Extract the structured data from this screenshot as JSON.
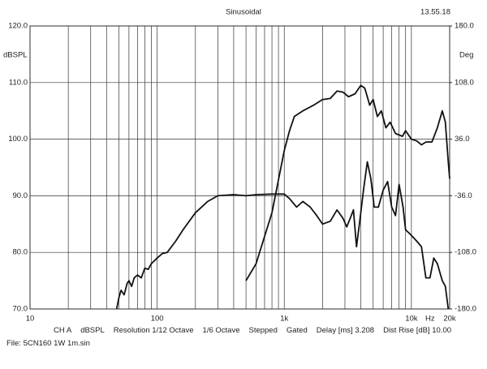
{
  "chart_data": {
    "type": "line",
    "title": "Sinusoidal",
    "timestamp": "13.55.18",
    "ylabel": "dBSPL",
    "y2label": "Deg",
    "xlabel": "Hz",
    "log_x": true,
    "grid": true,
    "minor_grid": true,
    "xlim": [
      10,
      20000
    ],
    "xticks": [
      10,
      100,
      {
        "value": 1000,
        "label": "1k"
      },
      {
        "value": 10000,
        "label": "10k"
      },
      {
        "value": 20000,
        "label": "20k"
      }
    ],
    "ylim": [
      70,
      120
    ],
    "yticks": [
      {
        "value": 70,
        "label": "70.0"
      },
      {
        "value": 80,
        "label": "80.0"
      },
      {
        "value": 90,
        "label": "90.0"
      },
      {
        "value": 100,
        "label": "100.0"
      },
      {
        "value": 110,
        "label": "110.0"
      },
      {
        "value": 120,
        "label": "120.0"
      }
    ],
    "y2lim": [
      -180,
      180
    ],
    "y2ticks": [
      {
        "value": -180,
        "label": "-180.0"
      },
      {
        "value": -108,
        "label": "-108.0"
      },
      {
        "value": -36,
        "label": "-36.0"
      },
      {
        "value": 36,
        "label": "36.0"
      },
      {
        "value": 108,
        "label": "108.0"
      },
      {
        "value": 180,
        "label": "180.0"
      }
    ],
    "series": [
      {
        "color": "#111111",
        "x": [
          48,
          50,
          52,
          55,
          58,
          60,
          63,
          66,
          70,
          75,
          80,
          85,
          90,
          100,
          110,
          120,
          140,
          160,
          200,
          250,
          300,
          400,
          500,
          600,
          800,
          1000,
          1100,
          1250,
          1400,
          1600,
          1800,
          2000,
          2300,
          2600,
          2900,
          3100,
          3300,
          3500,
          3700,
          3900,
          4200,
          4500,
          4800,
          5100,
          5500,
          6000,
          6500,
          7000,
          7500,
          8000,
          8600,
          9000,
          10000,
          11000,
          12000,
          13000,
          14000,
          15000,
          16000,
          17500,
          18500,
          19500
        ],
        "values": [
          70,
          72,
          73.3,
          72.5,
          74.5,
          75,
          74,
          75.5,
          76,
          75.5,
          77.2,
          77,
          78,
          79,
          79.8,
          80,
          82,
          84,
          87,
          89,
          90,
          90.2,
          90,
          90.2,
          90.3,
          90.3,
          89.5,
          88,
          89,
          88,
          86.5,
          85,
          85.5,
          87.5,
          86,
          84.5,
          86,
          87.5,
          81,
          85,
          91,
          96,
          93,
          88,
          88,
          91,
          92.5,
          88,
          86.5,
          92,
          88,
          84,
          83,
          82,
          81,
          75.5,
          75.5,
          79,
          78,
          75,
          74,
          70
        ]
      },
      {
        "color": "#111111",
        "x": [
          500,
          600,
          800,
          1000,
          1100,
          1200,
          1400,
          1700,
          2000,
          2300,
          2600,
          2900,
          3200,
          3600,
          4000,
          4300,
          4700,
          5000,
          5400,
          5800,
          6300,
          6800,
          7500,
          8500,
          9000,
          10000,
          11000,
          12000,
          13000,
          14500,
          16000,
          17500,
          18500,
          19500,
          20000
        ],
        "values": [
          75,
          78,
          87,
          98,
          101.5,
          104,
          105,
          106,
          107,
          107.2,
          108.5,
          108.3,
          107.5,
          108,
          109.5,
          109,
          106,
          107,
          104,
          105,
          102,
          103,
          101,
          100.5,
          101.5,
          100,
          99.7,
          99,
          99.5,
          99.5,
          102,
          105,
          103,
          96,
          93
        ]
      }
    ],
    "footer": [
      "CH A",
      "dBSPL",
      "Resolution 1/12 Octave",
      "1/6 Octave",
      "Stepped",
      "Gated",
      "Delay [ms] 3.208",
      "Dist Rise [dB] 10.00"
    ],
    "file": "File: 5CN160 1W 1m.sin"
  }
}
